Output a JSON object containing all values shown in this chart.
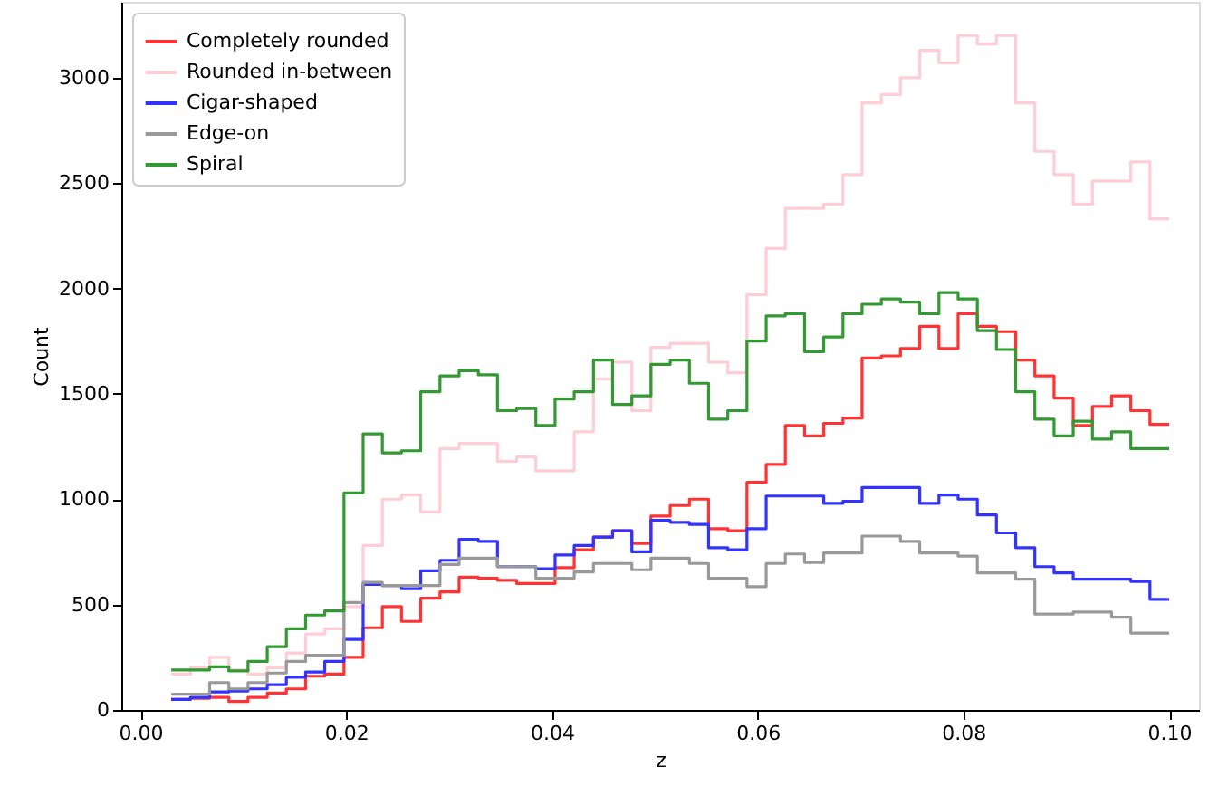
{
  "chart_data": {
    "type": "histogram",
    "xlabel": "z",
    "ylabel": "Count",
    "legend": "top left",
    "xlim": [
      -0.00185,
      0.1029
    ],
    "ylim": [
      0,
      3360
    ],
    "xticks": [
      {
        "value": 0,
        "label": "0.00"
      },
      {
        "value": 0.02,
        "label": "0.02"
      },
      {
        "value": 0.04,
        "label": "0.04"
      },
      {
        "value": 0.06,
        "label": "0.06"
      },
      {
        "value": 0.08,
        "label": "0.08"
      },
      {
        "value": 0.1,
        "label": "0.10"
      }
    ],
    "yticks": [
      0,
      500,
      1000,
      1500,
      2000,
      2500,
      3000
    ],
    "bins": [
      0.003,
      0.00487,
      0.00673,
      0.0086,
      0.01046,
      0.01233,
      0.01419,
      0.01606,
      0.01792,
      0.01979,
      0.02165,
      0.02352,
      0.02538,
      0.02725,
      0.02912,
      0.03098,
      0.03285,
      0.03471,
      0.03658,
      0.03844,
      0.04031,
      0.04217,
      0.04404,
      0.0459,
      0.04777,
      0.04963,
      0.0515,
      0.05337,
      0.05523,
      0.0571,
      0.05896,
      0.06083,
      0.06269,
      0.06456,
      0.06642,
      0.06829,
      0.07015,
      0.07202,
      0.07388,
      0.07575,
      0.07762,
      0.07948,
      0.08135,
      0.08321,
      0.08508,
      0.08694,
      0.08881,
      0.09067,
      0.09254,
      0.0944,
      0.09627,
      0.09813,
      0.1
    ],
    "series": [
      {
        "name": "Completely rounded",
        "color": "#ff3333",
        "values": [
          50,
          55,
          60,
          40,
          60,
          80,
          100,
          160,
          170,
          250,
          390,
          490,
          420,
          530,
          560,
          630,
          625,
          615,
          600,
          600,
          675,
          760,
          820,
          850,
          790,
          920,
          970,
          1000,
          860,
          850,
          1080,
          1165,
          1350,
          1300,
          1360,
          1385,
          1670,
          1680,
          1715,
          1820,
          1715,
          1880,
          1820,
          1795,
          1660,
          1585,
          1480,
          1350,
          1440,
          1490,
          1420,
          1355
        ]
      },
      {
        "name": "Rounded in-between",
        "color": "#ffcdd5",
        "values": [
          170,
          200,
          250,
          190,
          170,
          200,
          270,
          360,
          385,
          490,
          780,
          1000,
          1020,
          940,
          1240,
          1265,
          1265,
          1180,
          1200,
          1135,
          1135,
          1320,
          1570,
          1650,
          1420,
          1720,
          1740,
          1740,
          1650,
          1600,
          1970,
          2190,
          2380,
          2380,
          2400,
          2540,
          2880,
          2920,
          3000,
          3130,
          3070,
          3200,
          3160,
          3200,
          2880,
          2650,
          2540,
          2400,
          2510,
          2510,
          2600,
          2330
        ]
      },
      {
        "name": "Cigar-shaped",
        "color": "#3333ff",
        "values": [
          50,
          60,
          85,
          90,
          100,
          120,
          155,
          180,
          230,
          335,
          595,
          590,
          575,
          660,
          710,
          810,
          800,
          680,
          680,
          670,
          735,
          780,
          820,
          850,
          750,
          900,
          890,
          880,
          770,
          760,
          860,
          1015,
          1015,
          1015,
          980,
          990,
          1055,
          1055,
          1055,
          980,
          1020,
          1000,
          925,
          840,
          770,
          680,
          650,
          620,
          620,
          620,
          610,
          525
        ]
      },
      {
        "name": "Edge-on",
        "color": "#999999",
        "values": [
          75,
          75,
          130,
          100,
          130,
          175,
          230,
          260,
          260,
          510,
          605,
          590,
          590,
          590,
          690,
          720,
          720,
          680,
          680,
          625,
          625,
          655,
          695,
          695,
          665,
          720,
          720,
          695,
          625,
          625,
          585,
          695,
          740,
          700,
          745,
          745,
          825,
          825,
          800,
          745,
          745,
          730,
          650,
          650,
          620,
          455,
          455,
          465,
          465,
          440,
          365,
          365
        ]
      },
      {
        "name": "Spiral",
        "color": "#339933",
        "values": [
          190,
          190,
          205,
          185,
          230,
          300,
          385,
          450,
          470,
          1030,
          1310,
          1220,
          1230,
          1510,
          1585,
          1610,
          1590,
          1420,
          1430,
          1350,
          1475,
          1510,
          1660,
          1450,
          1490,
          1640,
          1660,
          1550,
          1380,
          1420,
          1750,
          1870,
          1880,
          1700,
          1770,
          1880,
          1925,
          1950,
          1935,
          1880,
          1980,
          1950,
          1800,
          1710,
          1510,
          1380,
          1300,
          1370,
          1285,
          1320,
          1240,
          1240
        ]
      }
    ]
  }
}
